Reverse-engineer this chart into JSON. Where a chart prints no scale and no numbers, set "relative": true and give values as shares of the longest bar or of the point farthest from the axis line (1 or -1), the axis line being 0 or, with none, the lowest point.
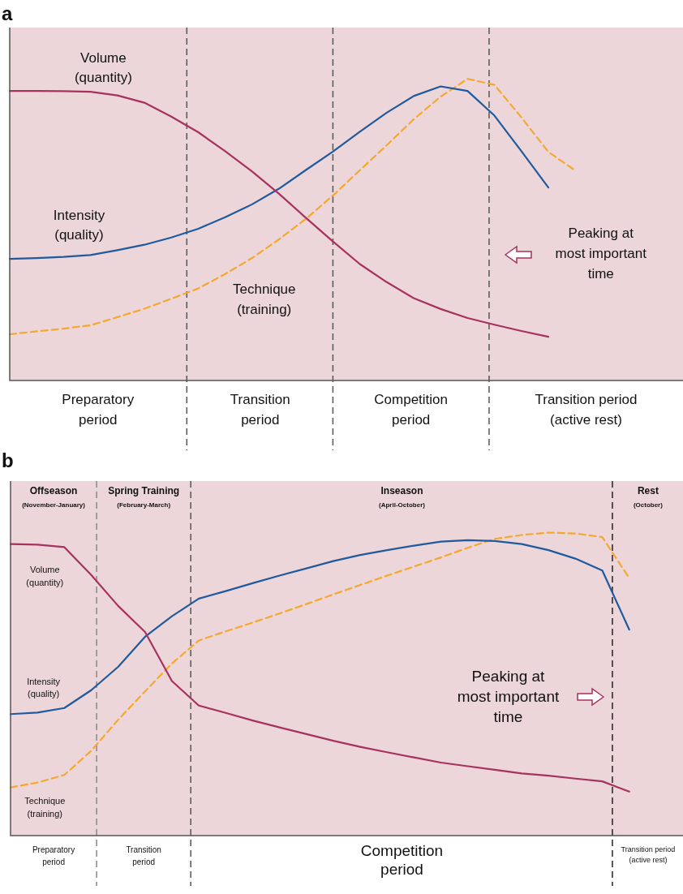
{
  "chart_data": [
    {
      "type": "line",
      "title": "a",
      "relative": true,
      "marker": "none",
      "legend": false,
      "categories": [
        null,
        null,
        null,
        null,
        null,
        null,
        null,
        null,
        null,
        null,
        null,
        null,
        null,
        null,
        null,
        null,
        null,
        null,
        null,
        null,
        null,
        null,
        null,
        null,
        null,
        null
      ],
      "series": [
        {
          "name": "Volume\n(quantity)",
          "color": "#a8325e",
          "line_style": "solid",
          "values": [
            0.96,
            0.96,
            0.959,
            0.957,
            0.945,
            0.921,
            0.875,
            0.823,
            0.76,
            0.693,
            0.619,
            0.539,
            0.461,
            0.386,
            0.326,
            0.273,
            0.237,
            0.207,
            0.185,
            0.164,
            0.145,
            null,
            null,
            null,
            null,
            null
          ]
        },
        {
          "name": "Intensity\n(quality)",
          "color": "#1f5a9e",
          "line_style": "solid",
          "values": [
            0.403,
            0.406,
            0.41,
            0.416,
            0.432,
            0.45,
            0.474,
            0.503,
            0.541,
            0.584,
            0.636,
            0.698,
            0.759,
            0.825,
            0.888,
            0.943,
            0.975,
            0.96,
            0.878,
            0.76,
            0.64,
            null,
            null,
            null,
            null,
            null
          ]
        },
        {
          "name": "Technique\n(training)",
          "color": "#f5a830",
          "line_style": "dashed",
          "values": [
            0.153,
            0.163,
            0.172,
            0.183,
            0.21,
            0.238,
            0.271,
            0.305,
            0.353,
            0.406,
            0.468,
            0.536,
            0.613,
            0.697,
            0.78,
            0.866,
            0.941,
            1,
            0.98,
            0.872,
            0.758,
            0.696,
            null,
            null,
            null,
            null
          ]
        }
      ],
      "ref_lines": [
        {
          "axis": "x",
          "line_style": "dashed",
          "color": "#555555"
        },
        {
          "axis": "x",
          "line_style": "dashed",
          "color": "#555555"
        },
        {
          "axis": "x",
          "line_style": "dashed",
          "color": "#555555"
        }
      ],
      "annotations": [
        "Preparatory\nperiod",
        "Transition\nperiod",
        "Competition\nperiod",
        "Transition period\n(active rest)",
        "Peaking at\nmost important\ntime"
      ]
    },
    {
      "type": "line",
      "title": "b",
      "relative": true,
      "marker": "none",
      "legend": false,
      "categories": [
        null,
        null,
        null,
        null,
        null,
        null,
        null,
        null,
        null,
        null,
        null,
        null,
        null,
        null,
        null,
        null,
        null,
        null,
        null,
        null,
        null,
        null,
        null,
        null,
        null,
        null
      ],
      "series": [
        {
          "name": "Volume\n(quantity)",
          "color": "#a8325e",
          "line_style": "solid",
          "values": [
            0.962,
            0.96,
            0.952,
            0.86,
            0.758,
            0.672,
            0.51,
            0.429,
            0.405,
            0.38,
            0.357,
            0.335,
            0.313,
            0.293,
            0.275,
            0.258,
            0.241,
            0.229,
            0.217,
            0.205,
            0.198,
            0.188,
            0.179,
            0.145,
            null,
            null
          ]
        },
        {
          "name": "Intensity\n(quality)",
          "color": "#1f5a9e",
          "line_style": "solid",
          "values": [
            0.401,
            0.406,
            0.421,
            0.48,
            0.557,
            0.656,
            0.724,
            0.782,
            0.807,
            0.833,
            0.858,
            0.882,
            0.906,
            0.926,
            0.942,
            0.957,
            0.97,
            0.975,
            0.972,
            0.962,
            0.942,
            0.914,
            0.875,
            0.68,
            null,
            null
          ]
        },
        {
          "name": "Technique\n(training)",
          "color": "#f5a830",
          "line_style": "dashed",
          "values": [
            0.159,
            0.175,
            0.2,
            0.28,
            0.382,
            0.476,
            0.568,
            0.644,
            0.674,
            0.703,
            0.733,
            0.764,
            0.796,
            0.827,
            0.858,
            0.888,
            0.918,
            0.95,
            0.979,
            0.992,
            1,
            0.997,
            0.985,
            0.85,
            null,
            null
          ]
        }
      ],
      "ref_lines": [
        {
          "axis": "x",
          "line_style": "dashed",
          "color": "#888888"
        },
        {
          "axis": "x",
          "line_style": "dashed",
          "color": "#555555"
        },
        {
          "axis": "x",
          "line_style": "dashed",
          "color": "#222222"
        }
      ],
      "annotations": [
        "Offseason\n(November-January)",
        "Spring Training\n(February-March)",
        "Inseason\n(April-October)",
        "Rest\n(October)",
        "Preparatory\nperiod",
        "Transition\nperiod",
        "Competition\nperiod",
        "Transition period\n(active rest)",
        "Peaking at\nmost important\ntime"
      ]
    }
  ]
}
